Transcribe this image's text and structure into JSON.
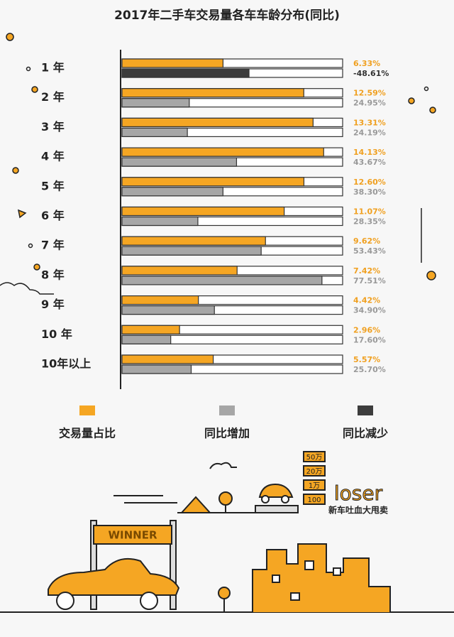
{
  "chart_data": {
    "type": "paired-hbar",
    "title": "2017年二手车交易量各车车龄分布(同比)",
    "categories": [
      "1 年",
      "2 年",
      "3 年",
      "4 年",
      "5 年",
      "6 年",
      "7 年",
      "8 年",
      "9 年",
      "10 年",
      "10年以上"
    ],
    "series": [
      {
        "name": "交易量占比",
        "color": "#f5a623",
        "label_color": "#f0a020",
        "xlim": [
          -1.5,
          15.6
        ],
        "values": [
          6.33,
          12.59,
          13.31,
          14.13,
          12.6,
          11.07,
          9.62,
          7.42,
          4.42,
          2.96,
          5.57
        ],
        "value_labels": [
          "6.33%",
          "12.59%",
          "13.31%",
          "14.13%",
          "12.60%",
          "11.07%",
          "9.62%",
          "7.42%",
          "4.42%",
          "2.96%",
          "5.57%"
        ]
      },
      {
        "name": "同比增加",
        "color": "#a6a6a6",
        "label_color": "#999999",
        "xlim": [
          -1.7,
          85.7
        ],
        "negative_name": "同比减少",
        "negative_color": "#3d3d3d",
        "negative_label_color": "#333333",
        "values": [
          -48.61,
          24.95,
          24.19,
          43.67,
          38.3,
          28.35,
          53.43,
          77.51,
          34.9,
          17.6,
          25.7
        ],
        "value_labels": [
          "-48.61%",
          "24.95%",
          "24.19%",
          "43.67%",
          "38.30%",
          "28.35%",
          "53.43%",
          "77.51%",
          "34.90%",
          "17.60%",
          "25.70%"
        ]
      }
    ]
  },
  "illustration": {
    "winner": "WINNER",
    "loser": "loser",
    "slogan": "新车吐血大甩卖",
    "signs": [
      "50万",
      "20万",
      "1万",
      "100"
    ]
  }
}
